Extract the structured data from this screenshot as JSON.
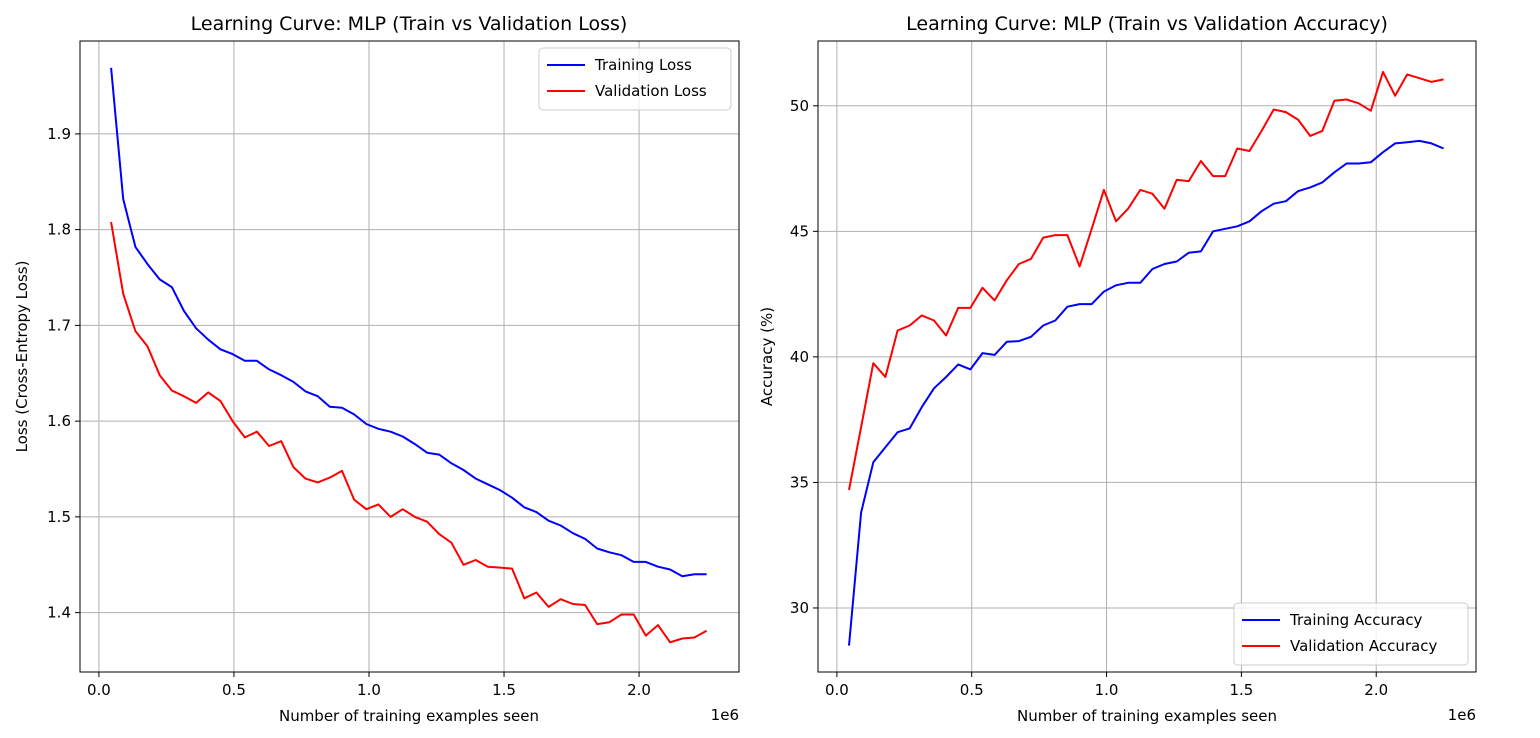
{
  "colors": {
    "training": "#0000ff",
    "validation": "#ff0000",
    "grid": "#b0b0b0",
    "axes": "#000000"
  },
  "chart_data": [
    {
      "type": "line",
      "title": "Learning Curve: MLP (Train vs Validation Loss)",
      "xlabel": "Number of training examples seen",
      "ylabel": "Loss (Cross-Entropy Loss)",
      "x_offset_label": "1e6",
      "xlim": [
        -0.07,
        2.37
      ],
      "ylim": [
        1.338,
        1.997
      ],
      "xticks": [
        0.0,
        0.5,
        1.0,
        1.5,
        2.0
      ],
      "xtick_labels": [
        "0.0",
        "0.5",
        "1.0",
        "1.5",
        "2.0"
      ],
      "yticks": [
        1.4,
        1.5,
        1.6,
        1.7,
        1.8,
        1.9
      ],
      "ytick_labels": [
        "1.4",
        "1.5",
        "1.6",
        "1.7",
        "1.8",
        "1.9"
      ],
      "grid": true,
      "legend_position": "upper right",
      "series": [
        {
          "name": "Training Loss",
          "color": "#0000ff",
          "x": [
            0.045,
            0.09,
            0.135,
            0.18,
            0.225,
            0.27,
            0.315,
            0.36,
            0.405,
            0.45,
            0.495,
            0.54,
            0.585,
            0.63,
            0.675,
            0.72,
            0.765,
            0.81,
            0.855,
            0.9,
            0.945,
            0.99,
            1.035,
            1.08,
            1.125,
            1.17,
            1.215,
            1.26,
            1.305,
            1.35,
            1.395,
            1.44,
            1.485,
            1.53,
            1.575,
            1.62,
            1.665,
            1.71,
            1.755,
            1.8,
            1.845,
            1.89,
            1.935,
            1.98,
            2.025,
            2.07,
            2.115,
            2.16,
            2.205,
            2.25
          ],
          "y": [
            1.969,
            1.832,
            1.782,
            1.764,
            1.748,
            1.74,
            1.715,
            1.697,
            1.685,
            1.675,
            1.67,
            1.663,
            1.663,
            1.654,
            1.648,
            1.641,
            1.631,
            1.626,
            1.615,
            1.614,
            1.607,
            1.597,
            1.592,
            1.589,
            1.584,
            1.576,
            1.567,
            1.565,
            1.556,
            1.549,
            1.54,
            1.534,
            1.528,
            1.52,
            1.51,
            1.505,
            1.496,
            1.491,
            1.483,
            1.477,
            1.467,
            1.463,
            1.46,
            1.453,
            1.453,
            1.448,
            1.445,
            1.438,
            1.44,
            1.44
          ]
        },
        {
          "name": "Validation Loss",
          "color": "#ff0000",
          "x": [
            0.045,
            0.09,
            0.135,
            0.18,
            0.225,
            0.27,
            0.315,
            0.36,
            0.405,
            0.45,
            0.495,
            0.54,
            0.585,
            0.63,
            0.675,
            0.72,
            0.765,
            0.81,
            0.855,
            0.9,
            0.945,
            0.99,
            1.035,
            1.08,
            1.125,
            1.17,
            1.215,
            1.26,
            1.305,
            1.35,
            1.395,
            1.44,
            1.485,
            1.53,
            1.575,
            1.62,
            1.665,
            1.71,
            1.755,
            1.8,
            1.845,
            1.89,
            1.935,
            1.98,
            2.025,
            2.07,
            2.115,
            2.16,
            2.205,
            2.25
          ],
          "y": [
            1.808,
            1.733,
            1.694,
            1.678,
            1.648,
            1.632,
            1.626,
            1.619,
            1.63,
            1.621,
            1.6,
            1.583,
            1.589,
            1.574,
            1.579,
            1.552,
            1.54,
            1.536,
            1.541,
            1.548,
            1.518,
            1.508,
            1.513,
            1.5,
            1.508,
            1.5,
            1.495,
            1.482,
            1.473,
            1.45,
            1.455,
            1.448,
            1.447,
            1.446,
            1.415,
            1.421,
            1.406,
            1.414,
            1.409,
            1.408,
            1.388,
            1.39,
            1.398,
            1.398,
            1.376,
            1.387,
            1.369,
            1.373,
            1.374,
            1.381
          ]
        }
      ]
    },
    {
      "type": "line",
      "title": "Learning Curve: MLP (Train vs Validation Accuracy)",
      "xlabel": "Number of training examples seen",
      "ylabel": "Accuracy (%)",
      "x_offset_label": "1e6",
      "xlim": [
        -0.07,
        2.37
      ],
      "ylim": [
        27.45,
        52.58
      ],
      "xticks": [
        0.0,
        0.5,
        1.0,
        1.5,
        2.0
      ],
      "xtick_labels": [
        "0.0",
        "0.5",
        "1.0",
        "1.5",
        "2.0"
      ],
      "yticks": [
        30,
        35,
        40,
        45,
        50
      ],
      "ytick_labels": [
        "30",
        "35",
        "40",
        "45",
        "50"
      ],
      "grid": true,
      "legend_position": "lower right",
      "series": [
        {
          "name": "Training Accuracy",
          "color": "#0000ff",
          "x": [
            0.045,
            0.09,
            0.135,
            0.18,
            0.225,
            0.27,
            0.315,
            0.36,
            0.405,
            0.45,
            0.495,
            0.54,
            0.585,
            0.63,
            0.675,
            0.72,
            0.765,
            0.81,
            0.855,
            0.9,
            0.945,
            0.99,
            1.035,
            1.08,
            1.125,
            1.17,
            1.215,
            1.26,
            1.305,
            1.35,
            1.395,
            1.44,
            1.485,
            1.53,
            1.575,
            1.62,
            1.665,
            1.71,
            1.755,
            1.8,
            1.845,
            1.89,
            1.935,
            1.98,
            2.025,
            2.07,
            2.115,
            2.16,
            2.205,
            2.25
          ],
          "y": [
            28.5,
            33.8,
            35.8,
            36.4,
            37.0,
            37.15,
            38.0,
            38.75,
            39.2,
            39.7,
            39.5,
            40.15,
            40.08,
            40.6,
            40.63,
            40.8,
            41.25,
            41.45,
            42.0,
            42.1,
            42.1,
            42.6,
            42.85,
            42.95,
            42.95,
            43.5,
            43.7,
            43.8,
            44.15,
            44.2,
            45.0,
            45.1,
            45.2,
            45.4,
            45.8,
            46.1,
            46.2,
            46.6,
            46.75,
            46.95,
            47.35,
            47.7,
            47.7,
            47.75,
            48.15,
            48.5,
            48.55,
            48.6,
            48.5,
            48.3
          ]
        },
        {
          "name": "Validation Accuracy",
          "color": "#ff0000",
          "x": [
            0.045,
            0.09,
            0.135,
            0.18,
            0.225,
            0.27,
            0.315,
            0.36,
            0.405,
            0.45,
            0.495,
            0.54,
            0.585,
            0.63,
            0.675,
            0.72,
            0.765,
            0.81,
            0.855,
            0.9,
            0.945,
            0.99,
            1.035,
            1.08,
            1.125,
            1.17,
            1.215,
            1.26,
            1.305,
            1.35,
            1.395,
            1.44,
            1.485,
            1.53,
            1.575,
            1.62,
            1.665,
            1.71,
            1.755,
            1.8,
            1.845,
            1.89,
            1.935,
            1.98,
            2.025,
            2.07,
            2.115,
            2.16,
            2.205,
            2.25
          ],
          "y": [
            34.7,
            37.2,
            39.75,
            39.2,
            41.05,
            41.25,
            41.65,
            41.45,
            40.85,
            41.95,
            41.95,
            42.75,
            42.25,
            43.05,
            43.7,
            43.9,
            44.75,
            44.85,
            44.85,
            43.6,
            45.1,
            46.65,
            45.4,
            45.9,
            46.65,
            46.5,
            45.9,
            47.05,
            47.0,
            47.8,
            47.2,
            47.2,
            48.3,
            48.2,
            49.0,
            49.85,
            49.75,
            49.45,
            48.8,
            49.0,
            50.2,
            50.25,
            50.1,
            49.8,
            51.35,
            50.4,
            51.25,
            51.1,
            50.95,
            51.05
          ]
        }
      ]
    }
  ]
}
